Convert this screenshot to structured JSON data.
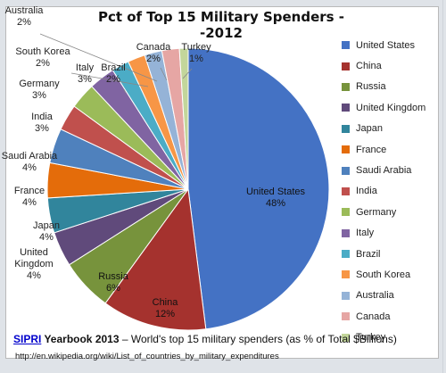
{
  "chart_data": {
    "type": "pie",
    "title": "Pct of Top 15 Military Spenders --2012",
    "legend_position": "right",
    "slices": [
      {
        "name": "United States",
        "value": 48,
        "label_name": "United States",
        "label_pct": "48%",
        "color": "#4472c4"
      },
      {
        "name": "China",
        "value": 12,
        "label_name": "China",
        "label_pct": "12%",
        "color": "#a5322e"
      },
      {
        "name": "Russia",
        "value": 6,
        "label_name": "Russia",
        "label_pct": "6%",
        "color": "#77933c"
      },
      {
        "name": "United Kingdom",
        "value": 4,
        "label_name": "United\nKingdom",
        "label_pct": "4%",
        "color": "#604a7b"
      },
      {
        "name": "Japan",
        "value": 4,
        "label_name": "Japan",
        "label_pct": "4%",
        "color": "#31859c"
      },
      {
        "name": "France",
        "value": 4,
        "label_name": "France",
        "label_pct": "4%",
        "color": "#e46c0a"
      },
      {
        "name": "Saudi Arabia",
        "value": 4,
        "label_name": "Saudi Arabia",
        "label_pct": "4%",
        "color": "#4f81bd"
      },
      {
        "name": "India",
        "value": 3,
        "label_name": "India",
        "label_pct": "3%",
        "color": "#c0504d"
      },
      {
        "name": "Germany",
        "value": 3,
        "label_name": "Germany",
        "label_pct": "3%",
        "color": "#9bbb59"
      },
      {
        "name": "Italy",
        "value": 3,
        "label_name": "Italy",
        "label_pct": "3%",
        "color": "#8064a2"
      },
      {
        "name": "Brazil",
        "value": 2,
        "label_name": "Brazil",
        "label_pct": "2%",
        "color": "#4bacc6"
      },
      {
        "name": "South Korea",
        "value": 2,
        "label_name": "South Korea",
        "label_pct": "2%",
        "color": "#f79646"
      },
      {
        "name": "Australia",
        "value": 2,
        "label_name": "Australia",
        "label_pct": "2%",
        "color": "#95b3d7"
      },
      {
        "name": "Canada",
        "value": 2,
        "label_name": "Canada",
        "label_pct": "2%",
        "color": "#e6a6a4"
      },
      {
        "name": "Turkey",
        "value": 1,
        "label_name": "Turkey",
        "label_pct": "1%",
        "color": "#c3d69b"
      }
    ]
  },
  "caption": {
    "source_link": "SIPRI",
    "yearbook": " Yearbook 2013",
    "rest": "  – World's top 15 military spenders   (as % of Total $Billions)"
  },
  "url": "http://en.wikipedia.org/wiki/List_of_countries_by_military_expenditures"
}
